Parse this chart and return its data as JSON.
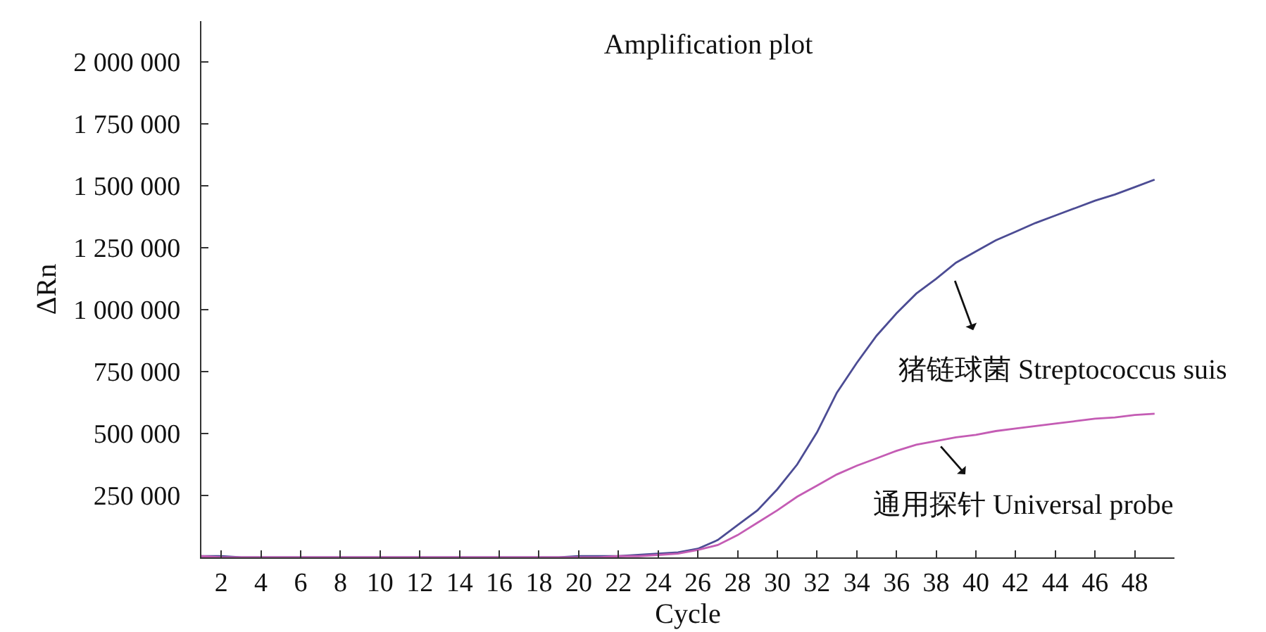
{
  "chart_data": {
    "type": "line",
    "title": "Amplification plot",
    "xlabel": "Cycle",
    "ylabel": "ΔRn",
    "x": [
      1,
      2,
      3,
      4,
      5,
      6,
      7,
      8,
      9,
      10,
      11,
      12,
      13,
      14,
      15,
      16,
      17,
      18,
      19,
      20,
      21,
      22,
      23,
      24,
      25,
      26,
      27,
      28,
      29,
      30,
      31,
      32,
      33,
      34,
      35,
      36,
      37,
      38,
      39,
      40,
      41,
      42,
      43,
      44,
      45,
      46,
      47,
      48,
      49
    ],
    "series": [
      {
        "color": "#4c4c94",
        "values": [
          5000,
          5000,
          0,
          0,
          0,
          0,
          0,
          0,
          0,
          0,
          0,
          0,
          0,
          0,
          0,
          0,
          0,
          0,
          0,
          5000,
          5000,
          5000,
          10000,
          15000,
          20000,
          35000,
          70000,
          130000,
          190000,
          275000,
          375000,
          505000,
          665000,
          785000,
          895000,
          985000,
          1065000,
          1125000,
          1190000,
          1235000,
          1280000,
          1315000,
          1350000,
          1380000,
          1410000,
          1440000,
          1465000,
          1495000,
          1525000
        ]
      },
      {
        "color": "#c45cb4",
        "values": [
          5000,
          0,
          0,
          0,
          0,
          0,
          0,
          0,
          0,
          0,
          0,
          0,
          0,
          0,
          0,
          0,
          0,
          0,
          0,
          0,
          0,
          5000,
          5000,
          10000,
          15000,
          30000,
          50000,
          90000,
          140000,
          190000,
          245000,
          290000,
          335000,
          370000,
          400000,
          430000,
          455000,
          470000,
          485000,
          495000,
          510000,
          520000,
          530000,
          540000,
          550000,
          560000,
          565000,
          575000,
          580000
        ]
      }
    ],
    "xlim": [
      1,
      50
    ],
    "xticks": [
      2,
      4,
      6,
      8,
      10,
      12,
      14,
      16,
      18,
      20,
      22,
      24,
      26,
      28,
      30,
      32,
      34,
      36,
      38,
      40,
      42,
      44,
      46,
      48
    ],
    "ylim": [
      0,
      2165000
    ],
    "yticks": [
      {
        "value": 250000,
        "label": "250 000"
      },
      {
        "value": 500000,
        "label": "500 000"
      },
      {
        "value": 750000,
        "label": "750 000"
      },
      {
        "value": 1000000,
        "label": "1 000 000"
      },
      {
        "value": 1250000,
        "label": "1 250 000"
      },
      {
        "value": 1500000,
        "label": "1 500 000"
      },
      {
        "value": 1750000,
        "label": "1 750 000"
      },
      {
        "value": 2000000,
        "label": "2 000 000"
      }
    ],
    "annotations": [
      {
        "text": "猪链球菌 Streptococcus suis",
        "x": 38.7,
        "y": 1170000
      },
      {
        "text": "通用探针 Universal probe",
        "x": 38,
        "y": 469000
      }
    ],
    "marker": "none",
    "line_style": "solid",
    "grid": false
  }
}
